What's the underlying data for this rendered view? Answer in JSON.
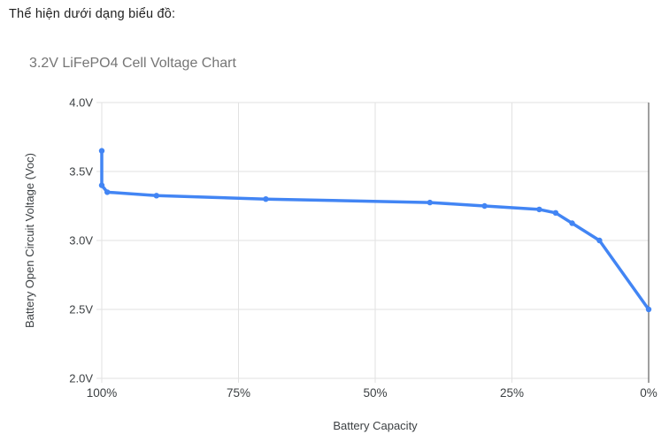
{
  "page": {
    "intro_text": "Thể hiện dưới dạng biểu đồ:"
  },
  "chart": {
    "title": "3.2V LiFePO4 Cell Voltage Chart"
  },
  "colors": {
    "series_blue": "#4285f4",
    "title_gray": "#757575",
    "axis_label_gray": "#3c4043",
    "gridline_gray": "#e2e2e2",
    "baseline_dark": "#424242",
    "background": "#ffffff"
  },
  "chart_data": {
    "type": "line",
    "title": "3.2V LiFePO4 Cell Voltage Chart",
    "xlabel": "Battery Capacity",
    "ylabel": "Battery Open Circuit Voltage (Voc)",
    "x_axis_reversed": true,
    "xlim": [
      100,
      0
    ],
    "ylim": [
      2.0,
      4.0
    ],
    "grid": true,
    "legend": "none",
    "x_ticks": [
      {
        "value": 100,
        "label": "100%"
      },
      {
        "value": 75,
        "label": "75%"
      },
      {
        "value": 50,
        "label": "50%"
      },
      {
        "value": 25,
        "label": "25%"
      },
      {
        "value": 0,
        "label": "0%"
      }
    ],
    "y_ticks": [
      {
        "value": 4.0,
        "label": "4.0V"
      },
      {
        "value": 3.5,
        "label": "3.5V"
      },
      {
        "value": 3.0,
        "label": "3.0V"
      },
      {
        "value": 2.5,
        "label": "2.5V"
      },
      {
        "value": 2.0,
        "label": "2.0V"
      }
    ],
    "series": [
      {
        "name": "Battery Open Circuit Voltage (Voc)",
        "color": "#4285f4",
        "points": [
          {
            "x": 100,
            "y": 3.65
          },
          {
            "x": 100,
            "y": 3.4
          },
          {
            "x": 99,
            "y": 3.35
          },
          {
            "x": 90,
            "y": 3.325
          },
          {
            "x": 70,
            "y": 3.3
          },
          {
            "x": 40,
            "y": 3.275
          },
          {
            "x": 30,
            "y": 3.25
          },
          {
            "x": 20,
            "y": 3.225
          },
          {
            "x": 17,
            "y": 3.2
          },
          {
            "x": 14,
            "y": 3.125
          },
          {
            "x": 9,
            "y": 3.0
          },
          {
            "x": 0,
            "y": 2.5
          }
        ]
      }
    ]
  }
}
